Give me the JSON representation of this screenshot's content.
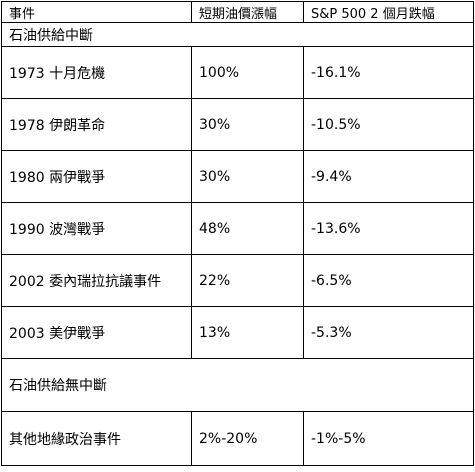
{
  "table": {
    "headers": [
      "事件",
      "短期油價漲幅",
      "S&P 500 2 個月跌幅"
    ],
    "section_supply_disrupted": "石油供給中斷",
    "disrupted_rows": [
      {
        "event": "1973 十月危機",
        "oil_rise": "100%",
        "sp_drop": "-16.1%"
      },
      {
        "event": "1978 伊朗革命",
        "oil_rise": "30%",
        "sp_drop": "-10.5%"
      },
      {
        "event": "1980 兩伊戰爭",
        "oil_rise": "30%",
        "sp_drop": "-9.4%"
      },
      {
        "event": "1990 波灣戰爭",
        "oil_rise": "48%",
        "sp_drop": "-13.6%"
      },
      {
        "event": "2002 委內瑞拉抗議事件",
        "oil_rise": "22%",
        "sp_drop": "-6.5%"
      },
      {
        "event": "2003 美伊戰爭",
        "oil_rise": "13%",
        "sp_drop": "-5.3%"
      }
    ],
    "section_supply_not_disrupted": "石油供給無中斷",
    "not_disrupted_rows": [
      {
        "event": "其他地緣政治事件",
        "oil_rise": "2%-20%",
        "sp_drop": "-1%-5%"
      }
    ]
  }
}
